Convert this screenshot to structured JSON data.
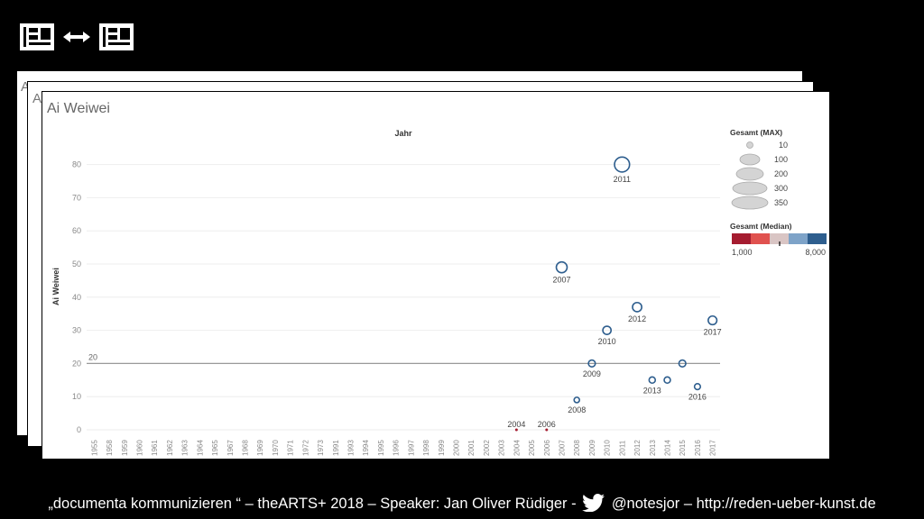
{
  "cards": {
    "peek_label": "A"
  },
  "chart_data": {
    "type": "scatter",
    "title": "Ai Weiwei",
    "xlabel": "Jahr",
    "ylabel": "Ai Weiwei",
    "x_categories": [
      "1955",
      "1958",
      "1959",
      "1960",
      "1961",
      "1962",
      "1963",
      "1964",
      "1965",
      "1967",
      "1968",
      "1969",
      "1970",
      "1971",
      "1972",
      "1973",
      "1991",
      "1993",
      "1994",
      "1995",
      "1996",
      "1997",
      "1998",
      "1999",
      "2000",
      "2001",
      "2002",
      "2003",
      "2004",
      "2005",
      "2006",
      "2007",
      "2008",
      "2009",
      "2010",
      "2011",
      "2012",
      "2013",
      "2014",
      "2015",
      "2016",
      "2017"
    ],
    "ylim": [
      0,
      85
    ],
    "yticks": [
      0,
      10,
      20,
      30,
      40,
      50,
      60,
      70,
      80
    ],
    "reference_line": {
      "value": 20,
      "label": "20"
    },
    "points": [
      {
        "year": "2004",
        "y": 0,
        "label": "2004",
        "color": "#a51c30"
      },
      {
        "year": "2006",
        "y": 0,
        "label": "2006",
        "color": "#a51c30"
      },
      {
        "year": "2007",
        "y": 49,
        "label": "2007"
      },
      {
        "year": "2008",
        "y": 9,
        "label": "2008"
      },
      {
        "year": "2009",
        "y": 20,
        "label": "2009"
      },
      {
        "year": "2010",
        "y": 30,
        "label": "2010"
      },
      {
        "year": "2011",
        "y": 80,
        "label": "2011"
      },
      {
        "year": "2012",
        "y": 37,
        "label": "2012"
      },
      {
        "year": "2013",
        "y": 15,
        "label": "2013"
      },
      {
        "year": "2014",
        "y": 15,
        "label": ""
      },
      {
        "year": "2015",
        "y": 20,
        "label": ""
      },
      {
        "year": "2016",
        "y": 13,
        "label": "2016"
      },
      {
        "year": "2017",
        "y": 33,
        "label": "2017"
      }
    ],
    "size_legend": {
      "title": "Gesamt (MAX)",
      "entries": [
        "10",
        "100",
        "200",
        "300",
        "350"
      ]
    },
    "color_legend": {
      "title": "Gesamt (Median)",
      "min_label": "1,000",
      "max_label": "8,000",
      "colors": [
        "#a51c30",
        "#e0524f",
        "#d9c5c4",
        "#7ea3c8",
        "#2e5e8e"
      ]
    },
    "grid": true,
    "legend_position": "right"
  },
  "footer": {
    "text_before": "„documenta kommunizieren “ – theARTS+ 2018 – Speaker: Jan Oliver Rüdiger -",
    "text_after": "@notesjor – http://reden-ueber-kunst.de"
  }
}
